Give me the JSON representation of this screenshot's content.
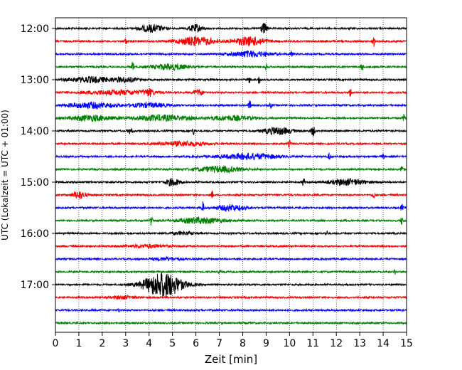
{
  "chart_data": {
    "type": "line",
    "title": "",
    "xlabel": "Zeit  [min]",
    "ylabel": "UTC (Lokalzeit = UTC + 01:00)",
    "xlim": [
      0,
      15
    ],
    "x_ticks": [
      "0",
      "1",
      "2",
      "3",
      "4",
      "5",
      "6",
      "7",
      "8",
      "9",
      "10",
      "11",
      "12",
      "13",
      "14",
      "15"
    ],
    "y_ticks": [
      "12:00",
      "13:00",
      "14:00",
      "15:00",
      "16:00",
      "17:00"
    ],
    "grid": "vertical dotted lines at each minute",
    "line_interval_min": 15,
    "colors": [
      "#000000",
      "#ff0000",
      "#0000ff",
      "#008000"
    ],
    "traces": [
      {
        "start": "12:00",
        "color": "#000000",
        "events": [
          {
            "t": 4.1,
            "a": 5,
            "w": 0.5
          },
          {
            "t": 6.0,
            "a": 5,
            "w": 0.3
          },
          {
            "t": 8.9,
            "a": 7,
            "w": 0.15
          }
        ]
      },
      {
        "start": "12:15",
        "color": "#ff0000",
        "events": [
          {
            "t": 3.0,
            "a": 5,
            "w": 0.05
          },
          {
            "t": 6.0,
            "a": 6,
            "w": 0.8
          },
          {
            "t": 8.3,
            "a": 6,
            "w": 0.7
          },
          {
            "t": 13.6,
            "a": 7,
            "w": 0.05
          }
        ]
      },
      {
        "start": "12:30",
        "color": "#0000ff",
        "events": [
          {
            "t": 8.3,
            "a": 4,
            "w": 0.8
          },
          {
            "t": 10.1,
            "a": 6,
            "w": 0.05
          }
        ]
      },
      {
        "start": "12:45",
        "color": "#008000",
        "events": [
          {
            "t": 3.3,
            "a": 7,
            "w": 0.05
          },
          {
            "t": 4.9,
            "a": 4,
            "w": 0.8
          },
          {
            "t": 9.0,
            "a": 4,
            "w": 0.05
          },
          {
            "t": 13.1,
            "a": 6,
            "w": 0.05
          }
        ]
      },
      {
        "start": "13:00",
        "color": "#000000",
        "events": [
          {
            "t": 1.5,
            "a": 4,
            "w": 0.9
          },
          {
            "t": 3.0,
            "a": 3,
            "w": 0.5
          },
          {
            "t": 8.3,
            "a": 6,
            "w": 0.05
          },
          {
            "t": 8.7,
            "a": 6,
            "w": 0.05
          }
        ]
      },
      {
        "start": "13:15",
        "color": "#ff0000",
        "events": [
          {
            "t": 2.7,
            "a": 3,
            "w": 1.5
          },
          {
            "t": 4.0,
            "a": 4,
            "w": 0.2
          },
          {
            "t": 6.1,
            "a": 4,
            "w": 0.2
          },
          {
            "t": 12.6,
            "a": 6,
            "w": 0.05
          }
        ]
      },
      {
        "start": "13:30",
        "color": "#0000ff",
        "events": [
          {
            "t": 1.5,
            "a": 4,
            "w": 1.0
          },
          {
            "t": 4.0,
            "a": 3,
            "w": 0.8
          },
          {
            "t": 8.3,
            "a": 7,
            "w": 0.05
          },
          {
            "t": 9.2,
            "a": 4,
            "w": 0.05
          }
        ]
      },
      {
        "start": "13:45",
        "color": "#008000",
        "events": [
          {
            "t": 1.5,
            "a": 4,
            "w": 0.9
          },
          {
            "t": 4.5,
            "a": 4,
            "w": 1.2
          },
          {
            "t": 7.5,
            "a": 3,
            "w": 1.0
          },
          {
            "t": 14.9,
            "a": 6,
            "w": 0.05
          }
        ]
      },
      {
        "start": "14:00",
        "color": "#000000",
        "events": [
          {
            "t": 3.2,
            "a": 4,
            "w": 0.1
          },
          {
            "t": 5.9,
            "a": 5,
            "w": 0.05
          },
          {
            "t": 9.5,
            "a": 5,
            "w": 0.6
          },
          {
            "t": 11.0,
            "a": 7,
            "w": 0.08
          }
        ]
      },
      {
        "start": "14:15",
        "color": "#ff0000",
        "events": [
          {
            "t": 5.5,
            "a": 3,
            "w": 1.0
          },
          {
            "t": 10.0,
            "a": 5,
            "w": 0.05
          }
        ]
      },
      {
        "start": "14:30",
        "color": "#0000ff",
        "events": [
          {
            "t": 8.3,
            "a": 4,
            "w": 1.2
          },
          {
            "t": 11.7,
            "a": 5,
            "w": 0.05
          },
          {
            "t": 14.0,
            "a": 4,
            "w": 0.05
          }
        ]
      },
      {
        "start": "14:45",
        "color": "#008000",
        "events": [
          {
            "t": 7.0,
            "a": 4,
            "w": 1.0
          },
          {
            "t": 14.8,
            "a": 6,
            "w": 0.05
          }
        ]
      },
      {
        "start": "15:00",
        "color": "#000000",
        "events": [
          {
            "t": 5.0,
            "a": 5,
            "w": 0.3
          },
          {
            "t": 10.6,
            "a": 6,
            "w": 0.05
          },
          {
            "t": 12.5,
            "a": 4,
            "w": 0.8
          }
        ]
      },
      {
        "start": "15:15",
        "color": "#ff0000",
        "events": [
          {
            "t": 1.0,
            "a": 5,
            "w": 0.3
          },
          {
            "t": 6.7,
            "a": 5,
            "w": 0.05
          },
          {
            "t": 13.6,
            "a": 6,
            "w": 0.05
          }
        ]
      },
      {
        "start": "15:30",
        "color": "#0000ff",
        "events": [
          {
            "t": 6.3,
            "a": 8,
            "w": 0.05
          },
          {
            "t": 7.5,
            "a": 4,
            "w": 0.6
          },
          {
            "t": 14.8,
            "a": 5,
            "w": 0.05
          }
        ]
      },
      {
        "start": "15:45",
        "color": "#008000",
        "events": [
          {
            "t": 4.1,
            "a": 7,
            "w": 0.05
          },
          {
            "t": 6.2,
            "a": 4,
            "w": 1.0
          },
          {
            "t": 14.8,
            "a": 6,
            "w": 0.05
          }
        ]
      },
      {
        "start": "16:00",
        "color": "#000000",
        "events": [
          {
            "t": 5.5,
            "a": 2,
            "w": 0.5
          },
          {
            "t": 11.6,
            "a": 3,
            "w": 0.05
          }
        ]
      },
      {
        "start": "16:15",
        "color": "#ff0000",
        "events": [
          {
            "t": 4.0,
            "a": 2,
            "w": 1.0
          }
        ]
      },
      {
        "start": "16:30",
        "color": "#0000ff",
        "events": [
          {
            "t": 4.8,
            "a": 2,
            "w": 0.6
          }
        ]
      },
      {
        "start": "16:45",
        "color": "#008000",
        "events": [
          {
            "t": 7.0,
            "a": 2,
            "w": 0.05
          },
          {
            "t": 14.5,
            "a": 3,
            "w": 0.05
          }
        ]
      },
      {
        "start": "17:00",
        "color": "#000000",
        "events": [
          {
            "t": 4.6,
            "a": 18,
            "w": 0.8
          }
        ]
      },
      {
        "start": "17:15",
        "color": "#ff0000",
        "events": [
          {
            "t": 2.9,
            "a": 2,
            "w": 0.5
          }
        ]
      },
      {
        "start": "17:30",
        "color": "#0000ff",
        "events": [
          {
            "t": 2.7,
            "a": 2,
            "w": 0.05
          }
        ]
      },
      {
        "start": "17:45",
        "color": "#008000",
        "events": []
      }
    ]
  }
}
